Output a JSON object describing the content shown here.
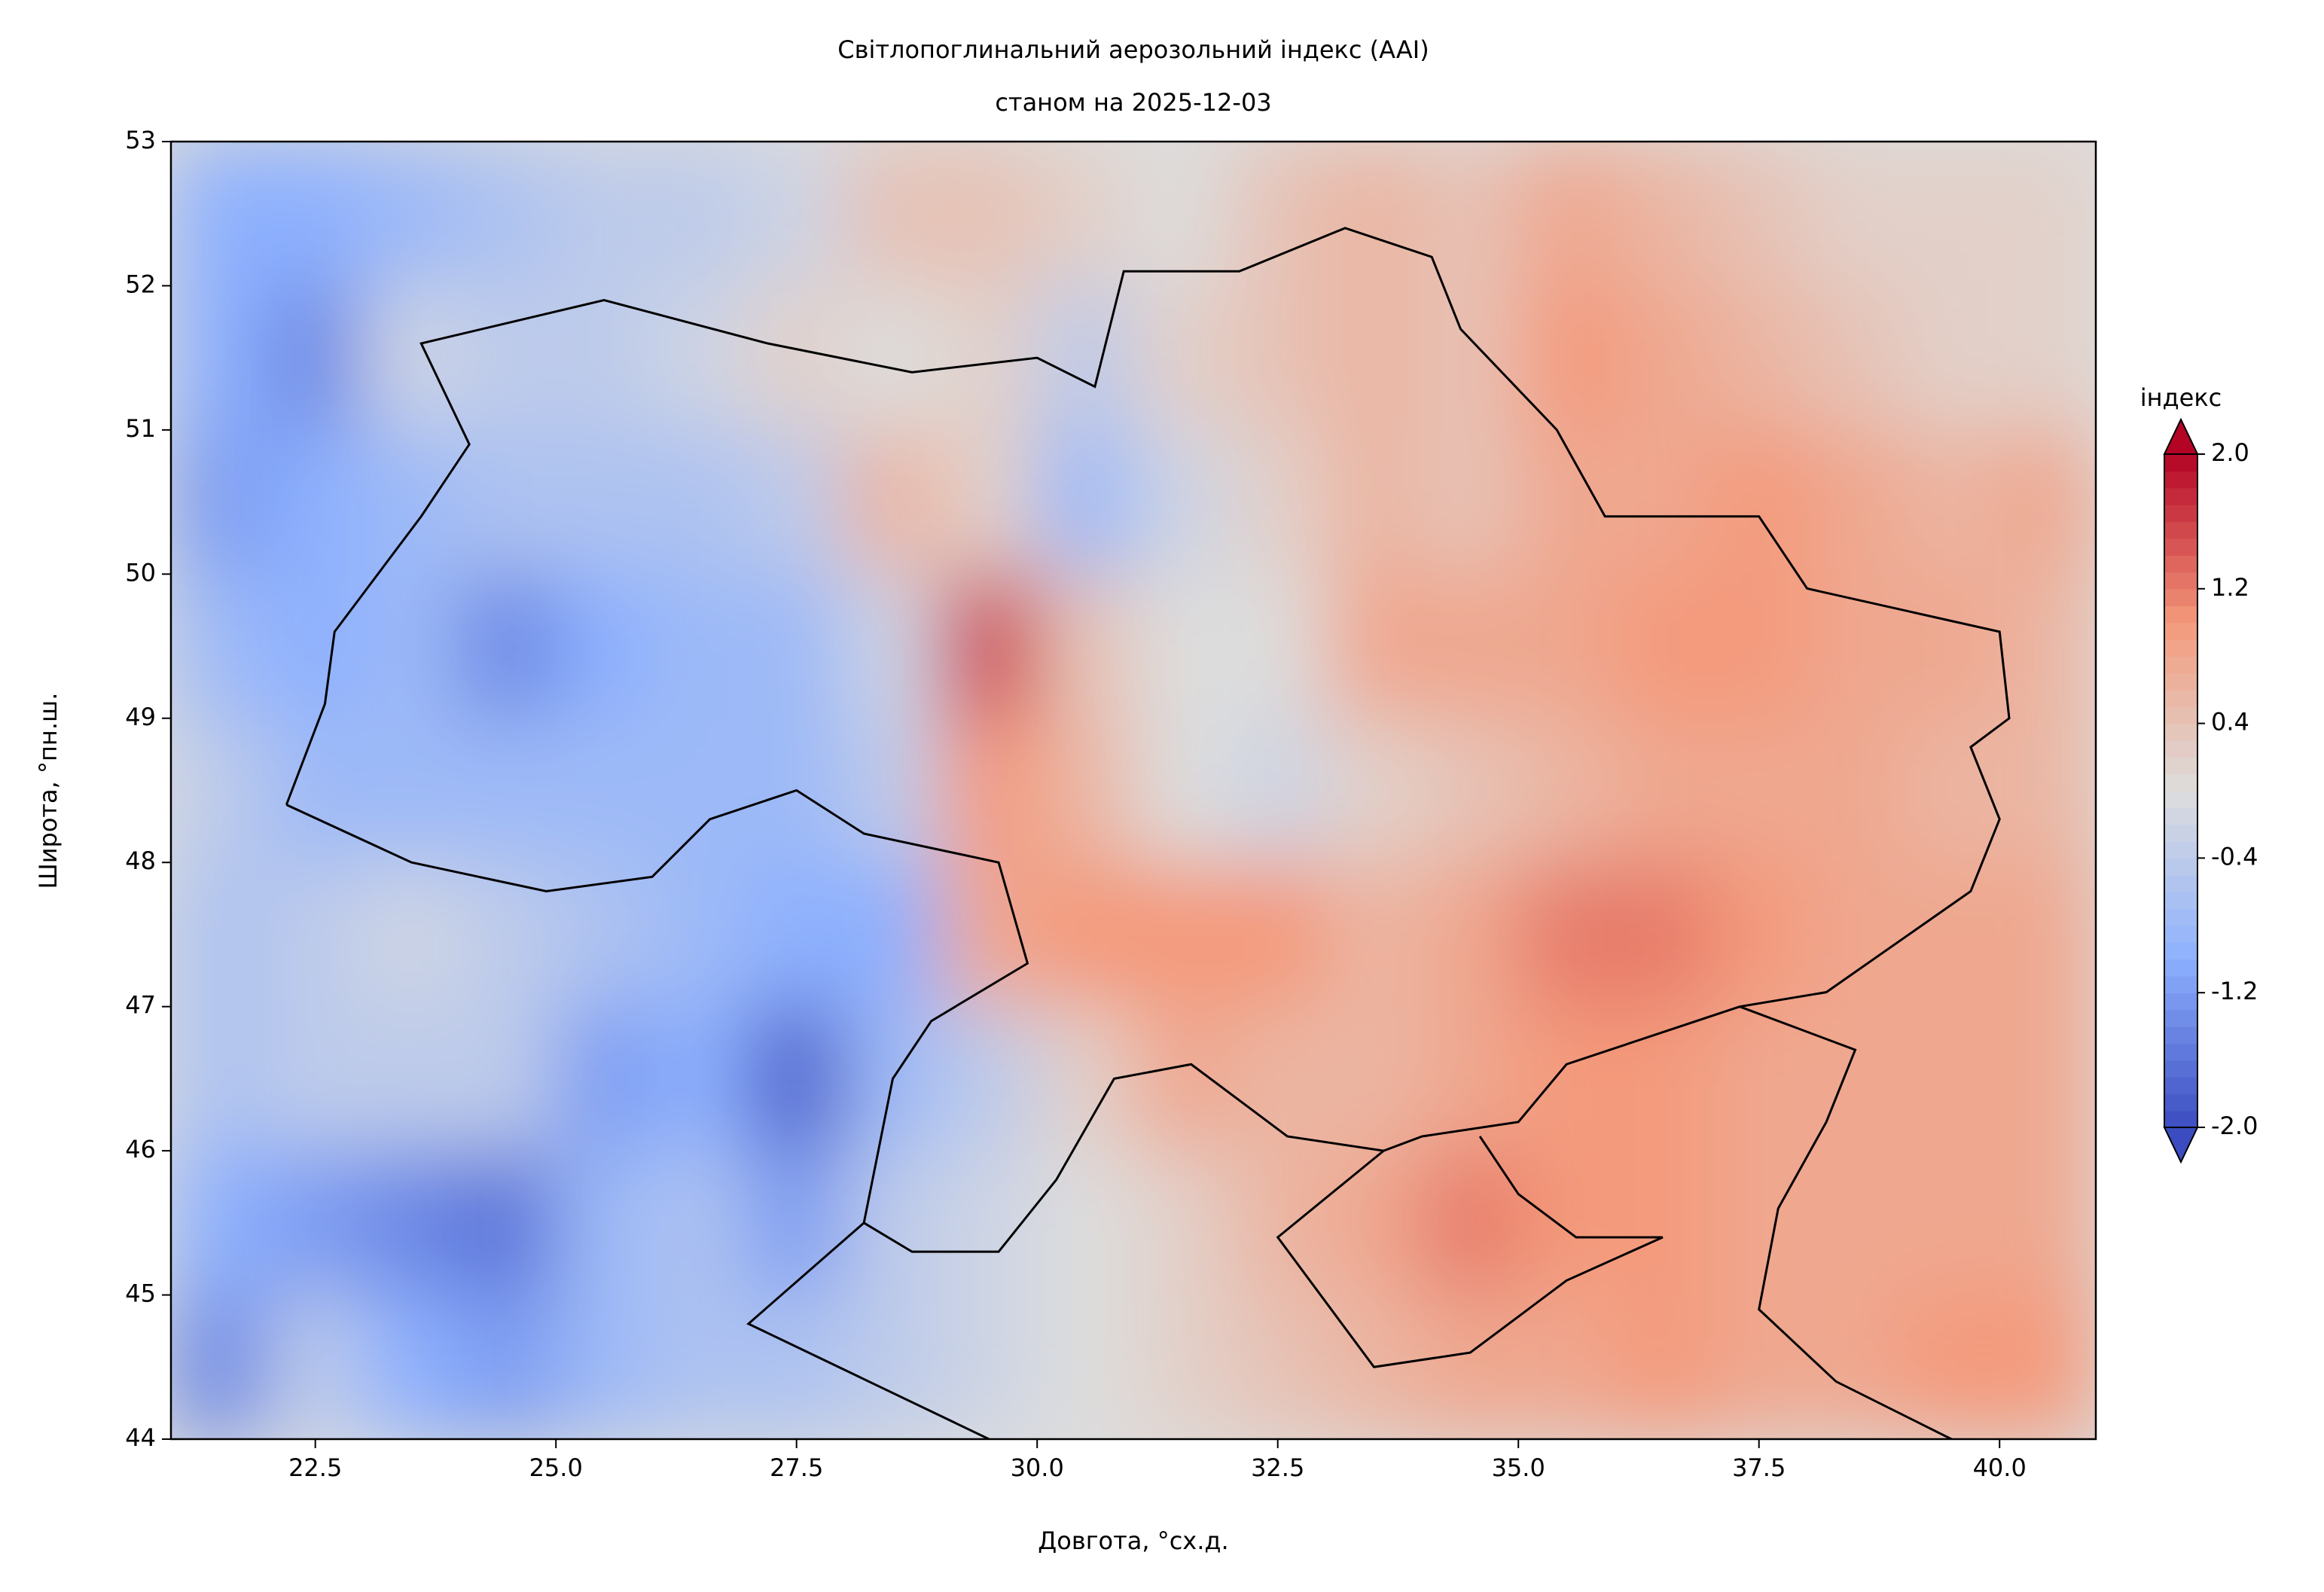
{
  "chart_data": {
    "type": "contour",
    "title": "Світлопоглинальний аерозольний індекс (AAI)",
    "subtitle": "станом на 2025-12-03",
    "x_label": "Довгота, °сх.д.",
    "y_label": "Широта, °пн.ш.",
    "xlim": [
      21,
      41
    ],
    "ylim": [
      44,
      53
    ],
    "xticks": [
      22.5,
      {
        "value": 25,
        "label": "25.0"
      },
      27.5,
      {
        "value": 30,
        "label": "30.0"
      },
      32.5,
      {
        "value": 35,
        "label": "35.0"
      },
      37.5,
      {
        "value": 40,
        "label": "40.0"
      }
    ],
    "yticks": [
      44,
      45,
      46,
      47,
      48,
      49,
      50,
      51,
      52,
      53
    ],
    "colormap": "coolwarm",
    "colorbar": {
      "label": "індекс",
      "lim": [
        -2,
        2
      ],
      "ticks": [
        {
          "value": -2,
          "label": "-2.0"
        },
        -1.2,
        -0.4,
        0.4,
        1.2,
        {
          "value": 2,
          "label": "2.0"
        }
      ]
    },
    "field": {
      "lon": [
        21.5,
        22.5,
        23.5,
        24.5,
        25.5,
        26.5,
        27.5,
        28.5,
        29.5,
        30.5,
        31.5,
        32.5,
        33.5,
        34.5,
        35.5,
        36.5,
        37.5,
        38.5,
        39.5,
        40.5
      ],
      "lat": [
        52.5,
        51.5,
        50.5,
        49.5,
        48.5,
        47.5,
        46.5,
        45.5,
        44.5
      ],
      "values": [
        [
          -1.0,
          -1.0,
          -0.8,
          -0.6,
          -0.4,
          -0.4,
          -0.2,
          0.4,
          0.4,
          0.2,
          0.0,
          0.4,
          0.6,
          0.4,
          0.8,
          0.6,
          0.4,
          0.2,
          0.2,
          0.2
        ],
        [
          -1.0,
          -1.4,
          -0.2,
          -0.4,
          -0.4,
          -0.2,
          0.2,
          0.0,
          0.2,
          -0.4,
          0.2,
          0.4,
          0.6,
          0.4,
          1.0,
          0.8,
          0.6,
          0.4,
          0.2,
          0.2
        ],
        [
          -1.2,
          -1.0,
          -0.8,
          -0.6,
          -0.6,
          -0.6,
          -0.4,
          0.6,
          0.2,
          -0.8,
          -0.2,
          0.2,
          0.6,
          0.4,
          0.8,
          0.8,
          1.0,
          0.8,
          0.6,
          0.8
        ],
        [
          -0.8,
          -1.0,
          -0.8,
          -1.4,
          -1.0,
          -0.8,
          -0.8,
          -0.2,
          1.6,
          0.4,
          0.0,
          0.0,
          0.8,
          0.8,
          0.8,
          1.0,
          1.0,
          0.8,
          0.8,
          0.6
        ],
        [
          -0.4,
          -0.8,
          -0.8,
          -0.8,
          -0.8,
          -0.8,
          -0.8,
          -0.4,
          1.0,
          0.6,
          0.0,
          -0.2,
          0.2,
          0.4,
          0.6,
          0.8,
          0.8,
          0.8,
          0.6,
          0.6
        ],
        [
          -0.6,
          -0.4,
          -0.2,
          -0.4,
          -0.6,
          -0.8,
          -1.0,
          -1.0,
          0.8,
          1.0,
          1.0,
          1.0,
          0.6,
          0.8,
          1.2,
          1.2,
          1.0,
          0.8,
          0.8,
          0.8
        ],
        [
          -0.6,
          -0.4,
          -0.4,
          -0.4,
          -1.2,
          -1.0,
          -1.8,
          -0.8,
          -0.4,
          0.2,
          0.8,
          0.6,
          0.6,
          0.8,
          1.0,
          1.0,
          0.8,
          0.8,
          0.8,
          0.8
        ],
        [
          -1.0,
          -1.2,
          -1.4,
          -1.6,
          -0.8,
          -0.6,
          -1.2,
          -0.4,
          -0.2,
          0.0,
          0.2,
          0.6,
          0.8,
          1.2,
          1.0,
          1.0,
          0.8,
          0.8,
          0.8,
          0.8
        ],
        [
          -1.4,
          -0.4,
          -1.0,
          -1.2,
          -0.8,
          -0.6,
          -0.6,
          -0.4,
          -0.2,
          0.0,
          0.2,
          0.4,
          0.6,
          0.8,
          0.8,
          1.0,
          0.8,
          0.8,
          1.0,
          1.0
        ]
      ]
    }
  }
}
